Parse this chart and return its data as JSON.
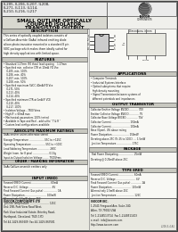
{
  "bg_color": "#f0f0ec",
  "border_outer": "#888888",
  "border_inner": "#aaaaaa",
  "title_lines": [
    "SMALL OUTLINE OPTICALLY",
    "COUPLED ISOLATOR",
    "TRANSISTOR OUTPUT"
  ],
  "part_numbers_line1": "IL205, IL206, IL207, IL208,",
  "part_numbers_line2": "IL271, IL113, IL114,",
  "part_numbers_line3": "IL210, IL216, IL217",
  "footer_left": [
    "ISOCOM COMPONENTS LTD",
    "Unit 19B, Park View Road West,",
    "Park View Industrial Estate, Brierley Road,",
    "Hartlepool, Cleveland, TS25 1YD",
    "Tel 44-1429-863609  Fax 44-1429-863581"
  ],
  "footer_right": [
    "ISOCOM INC.",
    "1-2541 Fireguard Ave, Suite 240,",
    "Allen, TX 75002 USA",
    "Tel 1-2148513714  Fax 1-2148511403",
    "e-mail:  info@isocom.com",
    "http://www.isocom.com"
  ],
  "section_header_bg": "#c8c8c0",
  "content_bg": "#f8f8f4",
  "text_color": "#111111"
}
